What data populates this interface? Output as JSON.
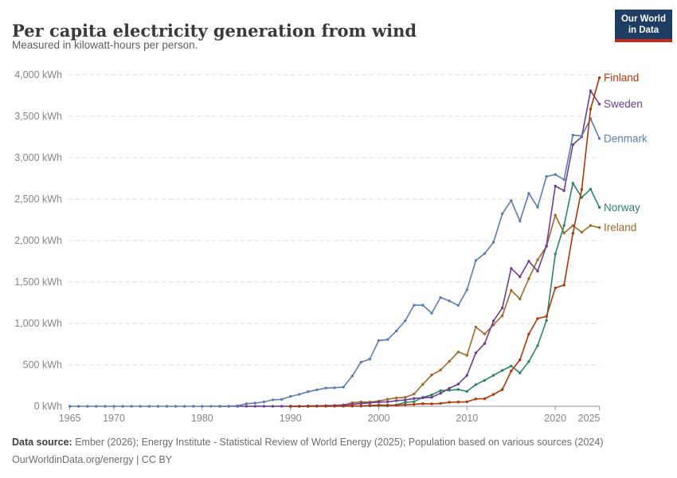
{
  "header": {
    "title": "Per capita electricity generation from wind",
    "subtitle": "Measured in kilowatt-hours per person.",
    "logo_line1": "Our World",
    "logo_line2": "in Data"
  },
  "footer": {
    "source_label": "Data source:",
    "source_text": " Ember (2026); Energy Institute - Statistical Review of World Energy (2025); Population based on various sources (2024)",
    "license_line": "OurWorldinData.org/energy | CC BY"
  },
  "colors": {
    "background": "#ffffff",
    "grid": "#dedede",
    "axis": "#969696",
    "axis_text": "#858585",
    "title_text": "#3a3a3a",
    "subtitle_text": "#5e5e5e",
    "footer_text": "#6c6c6c",
    "logo_bg": "#1d3d63",
    "logo_red": "#c5281c"
  },
  "chart_data": {
    "type": "line",
    "title": "Per capita electricity generation from wind",
    "subtitle": "Measured in kilowatt-hours per person.",
    "unit": "kWh",
    "y_tick_suffix": " kWh",
    "xlim": [
      1965,
      2025
    ],
    "ylim": [
      0,
      4000
    ],
    "x_ticks": [
      1965,
      1970,
      1980,
      1990,
      2000,
      2010,
      2020,
      2025
    ],
    "y_ticks": [
      0,
      500,
      1000,
      1500,
      2000,
      2500,
      3000,
      3500,
      4000
    ],
    "grid": "horizontal-dashed",
    "legend_position": "end-of-line labels, right side",
    "point_markers": true,
    "series": [
      {
        "name": "Ireland",
        "color": "#9e6a28",
        "start_year": 1990,
        "values": [
          0,
          1,
          4,
          4,
          5,
          4,
          14,
          44,
          52,
          51,
          63,
          86,
          102,
          108,
          148,
          266,
          378,
          438,
          542,
          655,
          615,
          956,
          872,
          983,
          1094,
          1398,
          1295,
          1539,
          1766,
          1927,
          2305,
          2090,
          2180,
          2100,
          2180,
          2155
        ]
      },
      {
        "name": "Norway",
        "color": "#2c8465",
        "start_year": 1990,
        "values": [
          0,
          0,
          0,
          2,
          2,
          2,
          2,
          2,
          3,
          6,
          7,
          6,
          17,
          48,
          56,
          108,
          137,
          189,
          194,
          203,
          180,
          261,
          313,
          374,
          432,
          486,
          403,
          540,
          731,
          1034,
          1835,
          2181,
          2692,
          2520,
          2620,
          2400
        ]
      },
      {
        "name": "Sweden",
        "color": "#6d3e91",
        "start_year": 1982,
        "values": [
          0,
          0,
          0,
          1,
          1,
          1,
          1,
          1,
          1,
          1,
          3,
          6,
          8,
          11,
          16,
          23,
          35,
          41,
          51,
          54,
          68,
          76,
          94,
          103,
          109,
          157,
          217,
          268,
          373,
          645,
          756,
          1031,
          1186,
          1663,
          1563,
          1750,
          1631,
          1936,
          2657,
          2601,
          3156,
          3251,
          3805,
          3645
        ]
      },
      {
        "name": "Denmark",
        "color": "#5b7db5",
        "start_year": 1965,
        "values": [
          0,
          0,
          0,
          0,
          0,
          0,
          0,
          0,
          0,
          0,
          0,
          0,
          0,
          0,
          0,
          0,
          1,
          1,
          2,
          7,
          31,
          39,
          53,
          78,
          84,
          119,
          144,
          176,
          199,
          220,
          224,
          232,
          366,
          532,
          570,
          794,
          804,
          909,
          1032,
          1219,
          1220,
          1123,
          1313,
          1271,
          1217,
          1405,
          1759,
          1842,
          1979,
          2323,
          2482,
          2234,
          2569,
          2401,
          2771,
          2796,
          2735,
          3271,
          3261,
          3470,
          3230
        ]
      },
      {
        "name": "Finland",
        "color": "#b13507",
        "start_year": 1990,
        "values": [
          0,
          0,
          0,
          1,
          1,
          2,
          2,
          3,
          5,
          10,
          15,
          14,
          12,
          18,
          23,
          32,
          29,
          35,
          49,
          52,
          54,
          89,
          91,
          143,
          202,
          425,
          560,
          871,
          1058,
          1085,
          1428,
          1462,
          2086,
          2616,
          3585,
          3965
        ]
      }
    ]
  }
}
